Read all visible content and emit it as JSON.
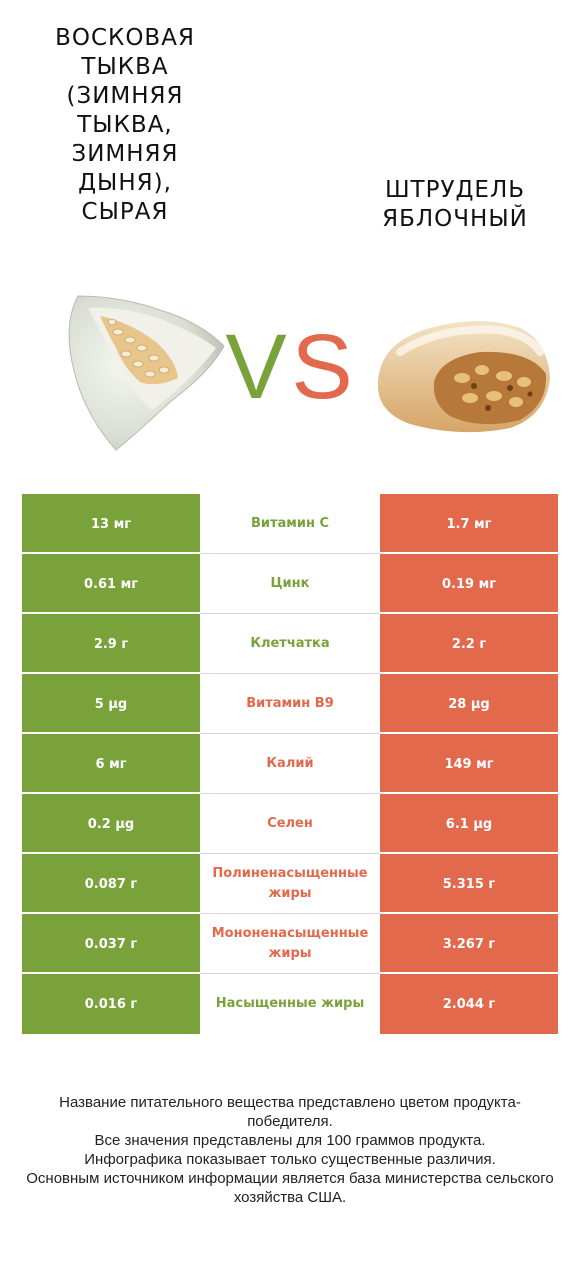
{
  "left_food": {
    "title": "ВОСКОВАЯ ТЫКВА (ЗИМНЯЯ ТЫКВА, ЗИМНЯЯ ДЫНЯ), СЫРАЯ",
    "color": "#7aa23a"
  },
  "right_food": {
    "title": "ШТРУДЕЛЬ ЯБЛОЧНЫЙ",
    "color": "#e2694c"
  },
  "vs": {
    "v": "V",
    "s": "S"
  },
  "rows": [
    {
      "left": "13 мг",
      "nutrient": "Витамин C",
      "right": "1.7 мг",
      "winner": "green"
    },
    {
      "left": "0.61 мг",
      "nutrient": "Цинк",
      "right": "0.19 мг",
      "winner": "green"
    },
    {
      "left": "2.9 г",
      "nutrient": "Клетчатка",
      "right": "2.2 г",
      "winner": "green"
    },
    {
      "left": "5 µg",
      "nutrient": "Витамин B9",
      "right": "28 µg",
      "winner": "red"
    },
    {
      "left": "6 мг",
      "nutrient": "Калий",
      "right": "149 мг",
      "winner": "red"
    },
    {
      "left": "0.2 µg",
      "nutrient": "Селен",
      "right": "6.1 µg",
      "winner": "red"
    },
    {
      "left": "0.087 г",
      "nutrient": "Полиненасыщенные жиры",
      "right": "5.315 г",
      "winner": "red"
    },
    {
      "left": "0.037 г",
      "nutrient": "Мононенасыщенные жиры",
      "right": "3.267 г",
      "winner": "red"
    },
    {
      "left": "0.016 г",
      "nutrient": "Насыщенные жиры",
      "right": "2.044 г",
      "winner": "green"
    }
  ],
  "footer": {
    "line1": "Название питательного вещества представлено цветом продукта-победителя.",
    "line2": "Все значения представлены для 100 граммов продукта.",
    "line3": "Инфографика показывает только существенные различия.",
    "line4": "Основным источником информации является база министерства сельского хозяйства США."
  }
}
